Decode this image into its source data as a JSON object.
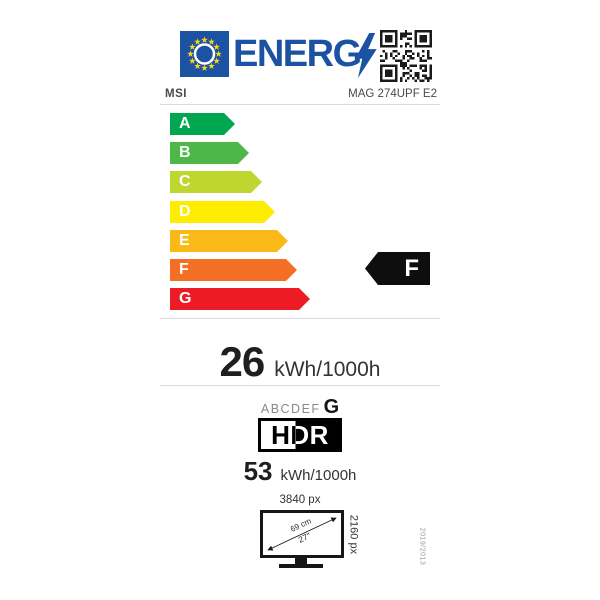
{
  "colors": {
    "eu_blue": "#1c52a2",
    "star_yellow": "#ffd617",
    "rating_arrow_black": "#0e0e0e",
    "divider_grey": "#dcdcdc"
  },
  "header": {
    "logo_text": "ENERG",
    "brand": "MSI",
    "model": "MAG 274UPF E2"
  },
  "scale": {
    "classes": [
      {
        "label": "A",
        "color": "#00a650"
      },
      {
        "label": "B",
        "color": "#4db848"
      },
      {
        "label": "C",
        "color": "#bed630"
      },
      {
        "label": "D",
        "color": "#ffed00"
      },
      {
        "label": "E",
        "color": "#fbb917"
      },
      {
        "label": "F",
        "color": "#f36f26"
      },
      {
        "label": "G",
        "color": "#ed1c24"
      }
    ],
    "rating": "F"
  },
  "sdr": {
    "value": "26",
    "unit": "kWh/1000h"
  },
  "hdr": {
    "scale_letters": "ABCDEF",
    "rating": "G",
    "logo": "HDR",
    "value": "53",
    "unit": "kWh/1000h"
  },
  "screen": {
    "horizontal_resolution": "3840 px",
    "diagonal_cm": "69 cm",
    "diagonal_inch": "27''",
    "vertical_resolution": "2160 px"
  },
  "regulation": "2019/2013",
  "icons": {
    "eu_flag": "eu-flag-icon",
    "lightning_bolt": "lightning-bolt-icon",
    "qr_code": "qr-code-icon",
    "monitor": "monitor-icon"
  }
}
